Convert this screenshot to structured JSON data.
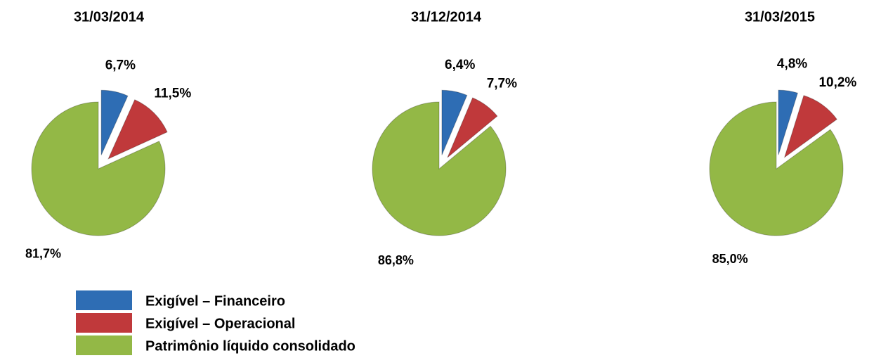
{
  "chart_data": [
    {
      "type": "pie",
      "title": "31/03/2014",
      "values": [
        6.7,
        11.5,
        81.7
      ],
      "value_labels": [
        "6,7%",
        "11,5%",
        "81,7%"
      ]
    },
    {
      "type": "pie",
      "title": "31/12/2014",
      "values": [
        6.4,
        7.7,
        86.8
      ],
      "value_labels": [
        "6,4%",
        "7,7%",
        "86,8%"
      ]
    },
    {
      "type": "pie",
      "title": "31/03/2015",
      "values": [
        4.8,
        10.2,
        85.0
      ],
      "value_labels": [
        "4,8%",
        "10,2%",
        "85,0%"
      ]
    }
  ],
  "legend": {
    "names": [
      "Exigível – Financeiro",
      "Exigível – Operacional",
      "Patrimônio líquido consolidado"
    ],
    "colors": [
      "#2e6db4",
      "#c0393b",
      "#93b846"
    ]
  }
}
